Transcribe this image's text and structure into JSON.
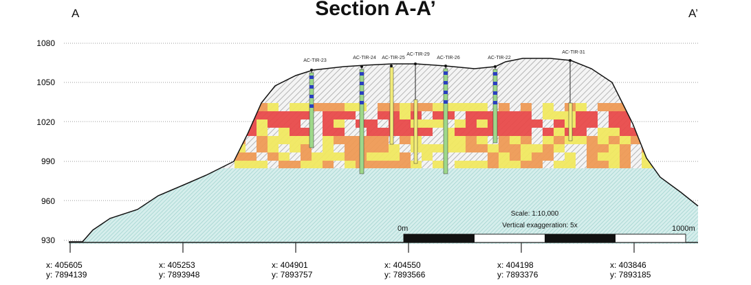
{
  "title": "Section A-A’",
  "left_label": "A",
  "right_label": "A’",
  "y_axis": {
    "ticks": [
      "1080",
      "1050",
      "1020",
      "990",
      "960",
      "930"
    ]
  },
  "drillholes": [
    "AC-TIR-23",
    "AC-TIR-24",
    "AC-TIR-25",
    "AC-TIR-29",
    "AC-TIR-26",
    "AC-TIR-22",
    "AC-TIR-31"
  ],
  "scale": {
    "text": "Scale:  1:10,000",
    "exaggeration": "Vertical exaggeration: 5x",
    "start": "0m",
    "end": "1000m"
  },
  "coords": [
    {
      "x": "x:  405605",
      "y": "y:  7894139"
    },
    {
      "x": "x:  405253",
      "y": "y:  7893948"
    },
    {
      "x": "x:  404901",
      "y": "y:  7893757"
    },
    {
      "x": "x:  404550",
      "y": "y:  7893566"
    },
    {
      "x": "x:  404198",
      "y": "y:  7893376"
    },
    {
      "x": "x:  403846",
      "y": "y:  7893185"
    }
  ],
  "colors": {
    "high": "#e84a4a",
    "mid": "#ee9a55",
    "low": "#f0e860",
    "waste": "#bfbfbf",
    "base": "#bfe3e0"
  }
}
